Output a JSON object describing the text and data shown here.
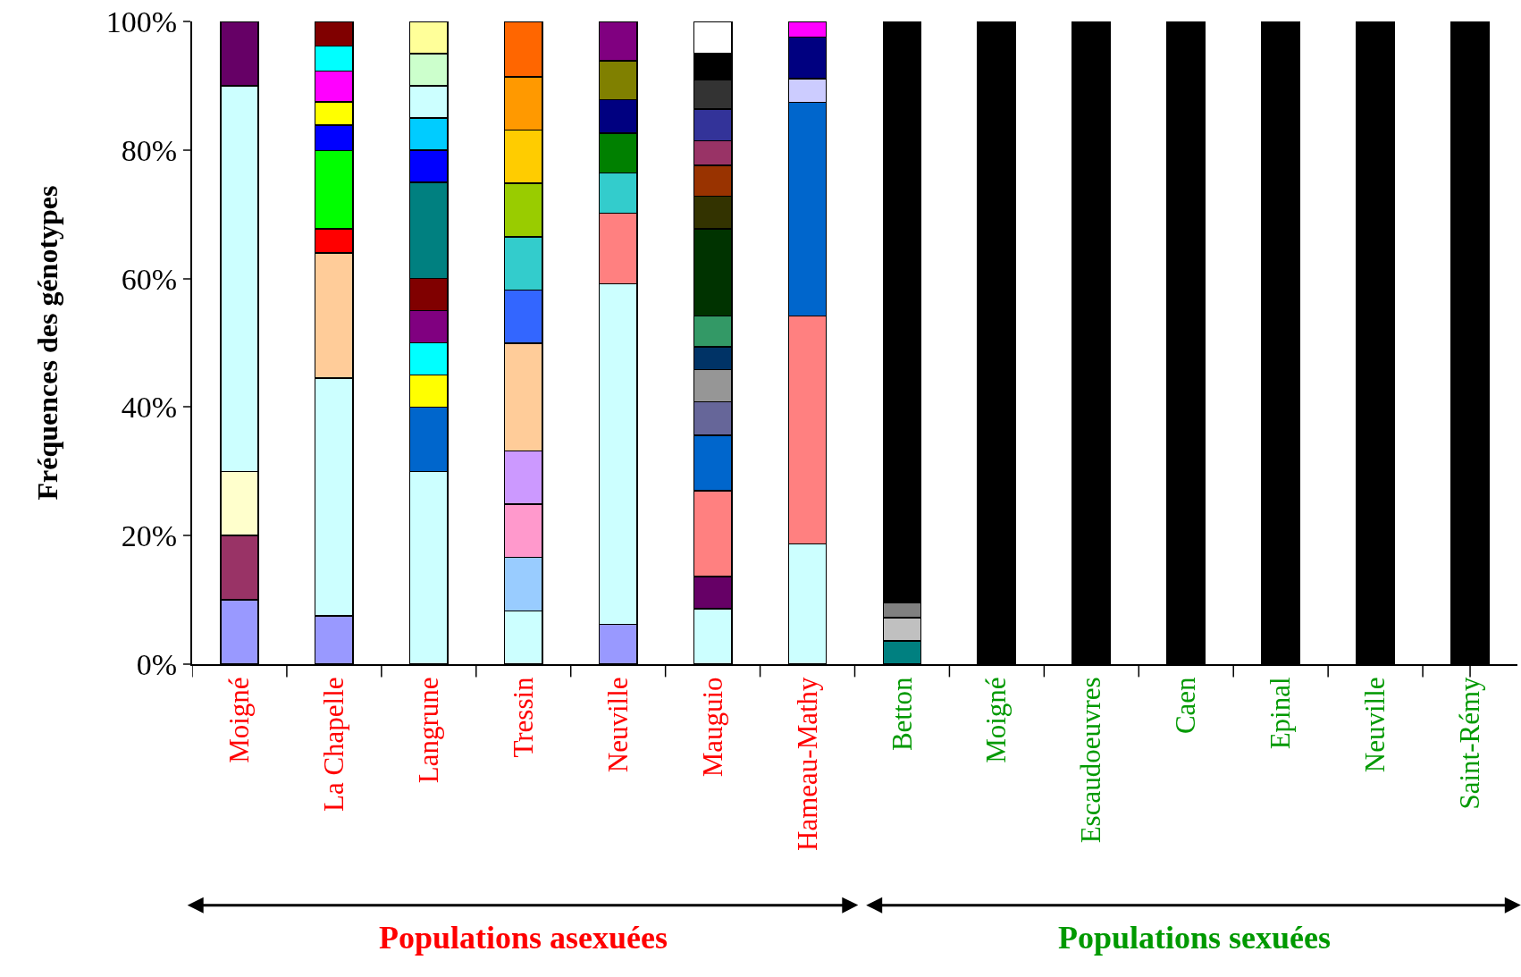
{
  "chart_data": {
    "type": "bar",
    "stacked": true,
    "ylabel": "Fréquences des génotypes",
    "categories": [
      "Moigné",
      "La Chapelle",
      "Langrune",
      "Tressin",
      "Neuville",
      "Mauguio",
      "Hameau-Mathy",
      "Betton",
      "Moigné",
      "Escaudoeuvres",
      "Caen",
      "Epinal",
      "Neuville",
      "Saint-Rémy"
    ],
    "ylim": [
      0,
      100
    ],
    "yticks": [
      {
        "value": 0,
        "label": "0%"
      },
      {
        "value": 20,
        "label": "20%"
      },
      {
        "value": 40,
        "label": "40%"
      },
      {
        "value": 60,
        "label": "60%"
      },
      {
        "value": 80,
        "label": "80%"
      },
      {
        "value": 100,
        "label": "100%"
      }
    ],
    "grid": false,
    "annotations": [
      "Populations asexuées",
      "Populations sexuées"
    ],
    "series": [
      {
        "values": [
          10,
          7.5,
          30,
          8.3,
          6.2,
          8.6,
          18.7,
          3.6,
          100,
          100,
          100,
          100,
          100,
          100
        ],
        "colors": [
          "#9999ff",
          "#9999ff",
          "#ccffff",
          "#ccffff",
          "#9999ff",
          "#ccffff",
          "#ccffff",
          "#008080",
          "#000000",
          "#000000",
          "#000000",
          "#000000",
          "#000000",
          "#000000"
        ]
      },
      {
        "values": [
          10,
          37,
          10,
          8.3,
          53,
          5,
          35.5,
          3.6,
          null,
          null,
          null,
          null,
          null,
          null
        ],
        "colors": [
          "#993366",
          "#ccffff",
          "#0066cc",
          "#99ccff",
          "#ccffff",
          "#660066",
          "#ff8080",
          "#c0c0c0",
          null,
          null,
          null,
          null,
          null,
          null
        ]
      },
      {
        "values": [
          10,
          19.5,
          5,
          8.3,
          11,
          13.4,
          33.2,
          2.4,
          null,
          null,
          null,
          null,
          null,
          null
        ],
        "colors": [
          "#ffffcc",
          "#ffcc99",
          "#ffff00",
          "#ff99cc",
          "#ff8080",
          "#ff8080",
          "#0066cc",
          "#808080",
          null,
          null,
          null,
          null,
          null,
          null
        ]
      },
      {
        "values": [
          60,
          3.7,
          5,
          8.3,
          6.2,
          8.6,
          3.7,
          90.4,
          null,
          null,
          null,
          null,
          null,
          null
        ],
        "colors": [
          "#ccffff",
          "#ff0000",
          "#00ffff",
          "#cc99ff",
          "#33cccc",
          "#0066cc",
          "#ccccff",
          "#000000",
          null,
          null,
          null,
          null,
          null,
          null
        ]
      },
      {
        "values": [
          10,
          12.2,
          5,
          16.7,
          6.2,
          5.2,
          6.5,
          null,
          null,
          null,
          null,
          null,
          null,
          null
        ],
        "colors": [
          "#660066",
          "#00ff00",
          "#800080",
          "#ffcc99",
          "#008000",
          "#666699",
          "#000080",
          null,
          null,
          null,
          null,
          null,
          null,
          null
        ]
      },
      {
        "values": [
          null,
          4,
          5,
          8.3,
          5.2,
          5,
          2.4,
          null,
          null,
          null,
          null,
          null,
          null,
          null
        ],
        "colors": [
          null,
          "#0000ff",
          "#800000",
          "#3366ff",
          "#000080",
          "#969696",
          "#ff00ff",
          null,
          null,
          null,
          null,
          null,
          null,
          null
        ]
      },
      {
        "values": [
          null,
          3.6,
          15,
          8.3,
          6.1,
          3.6,
          null,
          null,
          null,
          null,
          null,
          null,
          null,
          null
        ],
        "colors": [
          null,
          "#ffff00",
          "#008080",
          "#33cccc",
          "#808000",
          "#003366",
          null,
          null,
          null,
          null,
          null,
          null,
          null,
          null
        ]
      },
      {
        "values": [
          null,
          4.8,
          5,
          8.3,
          6.1,
          4.8,
          null,
          null,
          null,
          null,
          null,
          null,
          null,
          null
        ],
        "colors": [
          null,
          "#ff00ff",
          "#0000ff",
          "#99cc00",
          "#800080",
          "#339966",
          null,
          null,
          null,
          null,
          null,
          null,
          null,
          null
        ]
      },
      {
        "values": [
          null,
          3.9,
          5,
          8.3,
          null,
          13.5,
          null,
          null,
          null,
          null,
          null,
          null,
          null,
          null
        ],
        "colors": [
          null,
          "#00ffff",
          "#00ccff",
          "#ffcc00",
          null,
          "#003300",
          null,
          null,
          null,
          null,
          null,
          null,
          null,
          null
        ]
      },
      {
        "values": [
          null,
          3.8,
          5,
          8.3,
          null,
          5.1,
          null,
          null,
          null,
          null,
          null,
          null,
          null,
          null
        ],
        "colors": [
          null,
          "#800000",
          "#ccffff",
          "#ff9900",
          null,
          "#333300",
          null,
          null,
          null,
          null,
          null,
          null,
          null,
          null
        ]
      },
      {
        "values": [
          null,
          null,
          5,
          8.6,
          null,
          4.8,
          null,
          null,
          null,
          null,
          null,
          null,
          null,
          null
        ],
        "colors": [
          null,
          null,
          "#ccffcc",
          "#ff6600",
          null,
          "#993300",
          null,
          null,
          null,
          null,
          null,
          null,
          null,
          null
        ]
      },
      {
        "values": [
          null,
          null,
          5,
          null,
          null,
          3.8,
          null,
          null,
          null,
          null,
          null,
          null,
          null,
          null
        ],
        "colors": [
          null,
          null,
          "#ffff99",
          null,
          null,
          "#993366",
          null,
          null,
          null,
          null,
          null,
          null,
          null,
          null
        ]
      },
      {
        "values": [
          null,
          null,
          null,
          null,
          null,
          5,
          null,
          null,
          null,
          null,
          null,
          null,
          null,
          null
        ],
        "colors": [
          null,
          null,
          null,
          null,
          null,
          "#333399",
          null,
          null,
          null,
          null,
          null,
          null,
          null,
          null
        ]
      },
      {
        "values": [
          null,
          null,
          null,
          null,
          null,
          4.5,
          null,
          null,
          null,
          null,
          null,
          null,
          null,
          null
        ],
        "colors": [
          null,
          null,
          null,
          null,
          null,
          "#333333",
          null,
          null,
          null,
          null,
          null,
          null,
          null,
          null
        ]
      },
      {
        "values": [
          null,
          null,
          null,
          null,
          null,
          4.1,
          null,
          null,
          null,
          null,
          null,
          null,
          null,
          null
        ],
        "colors": [
          null,
          null,
          null,
          null,
          null,
          "#000000",
          null,
          null,
          null,
          null,
          null,
          null,
          null,
          null
        ]
      },
      {
        "values": [
          null,
          null,
          null,
          null,
          null,
          5,
          null,
          null,
          null,
          null,
          null,
          null,
          null,
          null
        ],
        "colors": [
          null,
          null,
          null,
          null,
          null,
          "#ffffff",
          null,
          null,
          null,
          null,
          null,
          null,
          null,
          null
        ]
      }
    ]
  }
}
